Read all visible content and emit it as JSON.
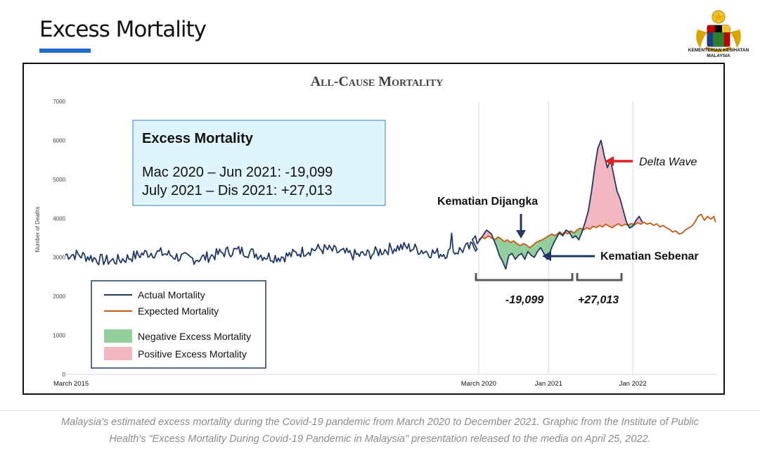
{
  "slide": {
    "title": "Excess Mortality",
    "colors": {
      "accent": "#1f6fc6"
    }
  },
  "logo": {
    "icon": "malaysia-coat-of-arms-icon",
    "text_line1": "KEMENTERIAN KESIHATAN",
    "text_line2": "MALAYSIA"
  },
  "chart_data": {
    "type": "line",
    "title": "All-Cause Mortality",
    "ylabel": "Number of Deaths",
    "xlabel": "",
    "ylim": [
      0,
      7000
    ],
    "yticks": [
      0,
      1000,
      2000,
      3000,
      4000,
      5000,
      6000,
      7000
    ],
    "x_tick_labels": [
      "March 2015",
      "March 2020",
      "Jan 2021",
      "Jan 2022"
    ],
    "grid": {
      "horizontal": false,
      "vertical": true
    },
    "legend_position": "bottom-left",
    "colors": {
      "actual": "#1f3864",
      "expected": "#c55a11",
      "negative_fill": "#93cf9c",
      "positive_fill": "#f1b6c0",
      "bracket": "#595959",
      "arrow_dark": "#1f3864",
      "arrow_red": "#e02020",
      "info_bg": "#dff4fb",
      "info_border": "#3c7fb8"
    },
    "legend": [
      {
        "label": "Actual Mortality",
        "kind": "line",
        "series": "actual"
      },
      {
        "label": "Expected Mortality",
        "kind": "line",
        "series": "expected"
      },
      {
        "label": "Negative Excess Mortality",
        "kind": "fill",
        "series": "negative_fill"
      },
      {
        "label": "Positive Excess Mortality",
        "kind": "fill",
        "series": "positive_fill"
      }
    ],
    "series": [
      {
        "name": "Actual Mortality",
        "key": "actual",
        "segments": [
          {
            "start_week": 0,
            "base": 2980,
            "amplitude": 150,
            "trend": 0.9,
            "end_week": 259
          },
          {
            "points": [
              [
                259,
                3350
              ],
              [
                262,
                3520
              ],
              [
                265,
                3700
              ],
              [
                268,
                3600
              ],
              [
                271,
                3300
              ],
              [
                273,
                3050
              ],
              [
                275,
                2900
              ],
              [
                277,
                2700
              ],
              [
                279,
                3050
              ],
              [
                281,
                3100
              ],
              [
                283,
                2950
              ],
              [
                285,
                3050
              ],
              [
                287,
                3100
              ],
              [
                289,
                2950
              ],
              [
                291,
                3150
              ],
              [
                293,
                3050
              ],
              [
                295,
                3000
              ],
              [
                297,
                3150
              ],
              [
                299,
                3250
              ],
              [
                301,
                3100
              ],
              [
                303,
                2950
              ],
              [
                305,
                3150
              ],
              [
                307,
                3350
              ],
              [
                309,
                3500
              ],
              [
                311,
                3650
              ],
              [
                313,
                3550
              ],
              [
                315,
                3700
              ],
              [
                317,
                3650
              ],
              [
                319,
                3500
              ],
              [
                321,
                3550
              ],
              [
                323,
                3450
              ],
              [
                325,
                3650
              ],
              [
                327,
                3900
              ],
              [
                329,
                4200
              ],
              [
                331,
                4700
              ],
              [
                333,
                5300
              ],
              [
                335,
                5800
              ],
              [
                337,
                6000
              ],
              [
                339,
                5600
              ],
              [
                341,
                5300
              ],
              [
                343,
                5500
              ],
              [
                345,
                5100
              ],
              [
                347,
                4700
              ],
              [
                349,
                4500
              ],
              [
                351,
                4200
              ],
              [
                353,
                3900
              ],
              [
                355,
                3750
              ],
              [
                357,
                3800
              ],
              [
                359,
                3950
              ],
              [
                361,
                4050
              ],
              [
                363,
                3900
              ]
            ]
          }
        ]
      },
      {
        "name": "Expected Mortality",
        "key": "expected",
        "points": [
          [
            260,
            3450
          ],
          [
            262,
            3520
          ],
          [
            264,
            3480
          ],
          [
            266,
            3550
          ],
          [
            268,
            3500
          ],
          [
            270,
            3450
          ],
          [
            272,
            3520
          ],
          [
            274,
            3480
          ],
          [
            276,
            3400
          ],
          [
            278,
            3450
          ],
          [
            280,
            3380
          ],
          [
            282,
            3420
          ],
          [
            284,
            3350
          ],
          [
            286,
            3300
          ],
          [
            288,
            3350
          ],
          [
            290,
            3320
          ],
          [
            292,
            3250
          ],
          [
            294,
            3300
          ],
          [
            296,
            3380
          ],
          [
            298,
            3420
          ],
          [
            300,
            3450
          ],
          [
            302,
            3500
          ],
          [
            304,
            3550
          ],
          [
            306,
            3600
          ],
          [
            308,
            3550
          ],
          [
            310,
            3620
          ],
          [
            312,
            3580
          ],
          [
            314,
            3650
          ],
          [
            316,
            3600
          ],
          [
            318,
            3680
          ],
          [
            320,
            3620
          ],
          [
            322,
            3700
          ],
          [
            324,
            3750
          ],
          [
            326,
            3700
          ],
          [
            328,
            3760
          ],
          [
            330,
            3720
          ],
          [
            332,
            3800
          ],
          [
            334,
            3760
          ],
          [
            336,
            3820
          ],
          [
            338,
            3780
          ],
          [
            340,
            3850
          ],
          [
            342,
            3800
          ],
          [
            344,
            3760
          ],
          [
            346,
            3820
          ],
          [
            348,
            3860
          ],
          [
            350,
            3800
          ],
          [
            352,
            3850
          ],
          [
            354,
            3820
          ],
          [
            356,
            3870
          ],
          [
            358,
            3830
          ],
          [
            360,
            3890
          ],
          [
            362,
            3850
          ],
          [
            364,
            3900
          ],
          [
            366,
            3850
          ],
          [
            368,
            3880
          ],
          [
            370,
            3820
          ],
          [
            372,
            3860
          ],
          [
            374,
            3780
          ],
          [
            376,
            3820
          ],
          [
            378,
            3760
          ],
          [
            380,
            3720
          ],
          [
            382,
            3650
          ],
          [
            384,
            3680
          ],
          [
            386,
            3600
          ],
          [
            388,
            3620
          ],
          [
            390,
            3700
          ],
          [
            392,
            3750
          ],
          [
            394,
            3800
          ],
          [
            396,
            3900
          ],
          [
            398,
            4050
          ],
          [
            400,
            4100
          ],
          [
            402,
            3950
          ],
          [
            404,
            4050
          ],
          [
            406,
            3980
          ],
          [
            408,
            4050
          ],
          [
            409,
            3900
          ]
        ]
      }
    ],
    "x_domain_weeks": [
      0,
      410
    ],
    "x_tick_weeks": [
      0,
      260,
      304,
      357
    ],
    "vertical_grid_weeks": [
      260,
      304,
      357
    ],
    "info_box": {
      "title": "Excess Mortality",
      "line1": "Mac 2020 – Jun 2021: -19,099",
      "line2": "July 2021 – Dis 2021: +27,013"
    },
    "annotations": {
      "expected_label": "Kematian Dijangka",
      "actual_label": "Kematian Sebenar",
      "delta_label": "Delta Wave",
      "negative_total": "-19,099",
      "positive_total": "+27,013"
    }
  },
  "caption": {
    "line1": "Malaysia's estimated excess mortality during the Covid-19 pandemic from March 2020 to December 2021. Graphic from the Institute of Public",
    "line2": "Health's \"Excess Mortality During Covid-19 Pandemic in Malaysia\" presentation released to the media on April 25, 2022."
  }
}
